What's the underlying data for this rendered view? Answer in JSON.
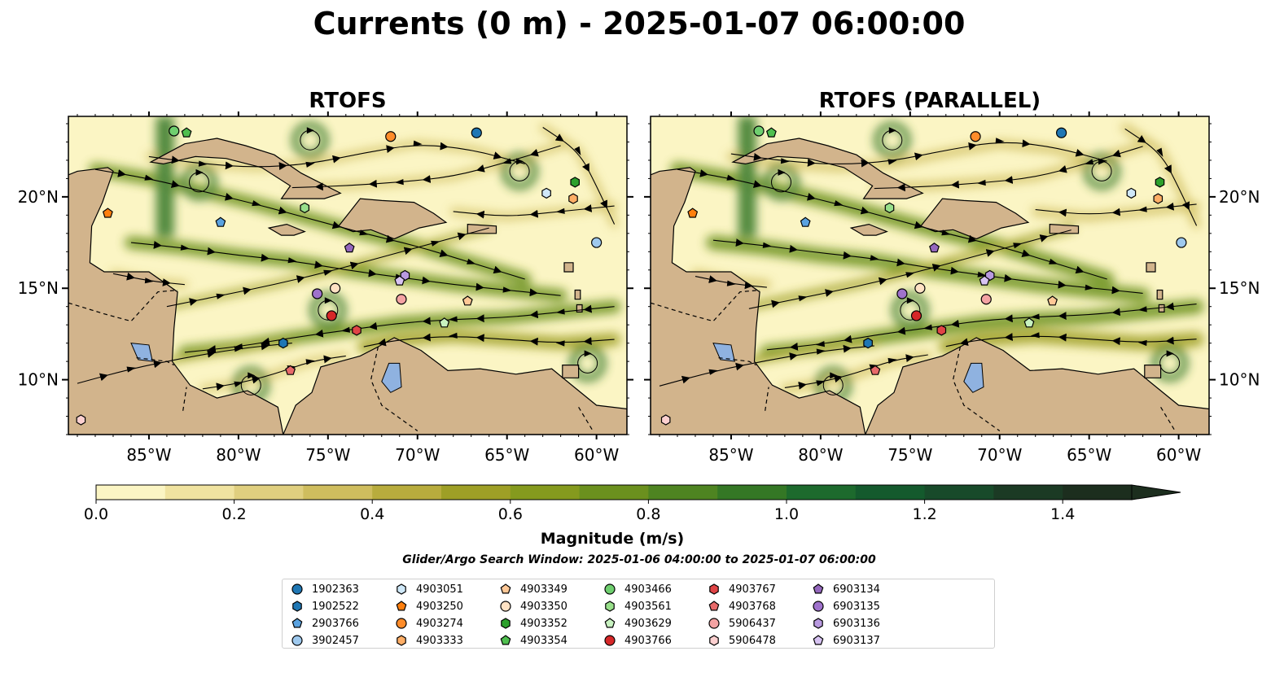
{
  "figure": {
    "title": "Currents (0 m) - 2025-01-07 06:00:00",
    "search_window": "Glider/Argo Search Window: 2025-01-06 04:00:00 to 2025-01-07 06:00:00"
  },
  "panels": [
    {
      "title": "RTOFS"
    },
    {
      "title": "RTOFS (PARALLEL)"
    }
  ],
  "map_extent": {
    "lon": [
      -89.5,
      -58.3
    ],
    "lat": [
      7.0,
      24.4
    ]
  },
  "axes": {
    "lon_ticks": [
      {
        "value": -85,
        "label": "85°W"
      },
      {
        "value": -80,
        "label": "80°W"
      },
      {
        "value": -75,
        "label": "75°W"
      },
      {
        "value": -70,
        "label": "70°W"
      },
      {
        "value": -65,
        "label": "65°W"
      },
      {
        "value": -60,
        "label": "60°W"
      }
    ],
    "lat_ticks": [
      {
        "value": 20,
        "label": "20°N"
      },
      {
        "value": 15,
        "label": "15°N"
      },
      {
        "value": 10,
        "label": "10°N"
      }
    ]
  },
  "colorbar": {
    "label": "Magnitude (m/s)",
    "min": 0.0,
    "max": 1.5,
    "extend": "max",
    "ticks": [
      "0.0",
      "0.2",
      "0.4",
      "0.6",
      "0.8",
      "1.0",
      "1.2",
      "1.4"
    ],
    "colors": [
      "#fbf5c4",
      "#f0e3a0",
      "#e0cf7f",
      "#cfbd5e",
      "#b8ac3d",
      "#9e9f26",
      "#859a1e",
      "#6b901e",
      "#4e8421",
      "#347725",
      "#1d6a2d",
      "#145a2d",
      "#184a2a",
      "#1b3a24",
      "#1c2e1e"
    ]
  },
  "colors": {
    "land": "#d2b48c",
    "lakes": "#8fb2e0",
    "water_low": "#fbf5c4",
    "water_high": "#2e6e25"
  },
  "platforms": [
    {
      "id": "1902363",
      "color": "#1f77b4",
      "marker": "circle"
    },
    {
      "id": "1902522",
      "color": "#1f77b4",
      "marker": "hexagon"
    },
    {
      "id": "2903766",
      "color": "#5aa2e0",
      "marker": "pentagon"
    },
    {
      "id": "3902457",
      "color": "#9ec9ee",
      "marker": "circle"
    },
    {
      "id": "4903051",
      "color": "#cfe8f8",
      "marker": "hexagon"
    },
    {
      "id": "4903250",
      "color": "#ff7f0e",
      "marker": "pentagon"
    },
    {
      "id": "4903274",
      "color": "#ff8c2a",
      "marker": "circle"
    },
    {
      "id": "4903333",
      "color": "#ffae66",
      "marker": "hexagon"
    },
    {
      "id": "4903349",
      "color": "#ffc896",
      "marker": "pentagon"
    },
    {
      "id": "4903350",
      "color": "#ffe2c4",
      "marker": "circle"
    },
    {
      "id": "4903352",
      "color": "#2ca02c",
      "marker": "hexagon"
    },
    {
      "id": "4903354",
      "color": "#4fbf4f",
      "marker": "pentagon"
    },
    {
      "id": "4903466",
      "color": "#6fcf6f",
      "marker": "circle"
    },
    {
      "id": "4903561",
      "color": "#98df8a",
      "marker": "hexagon"
    },
    {
      "id": "4903629",
      "color": "#c8f2c0",
      "marker": "pentagon"
    },
    {
      "id": "4903766",
      "color": "#d62728",
      "marker": "circle"
    },
    {
      "id": "4903767",
      "color": "#e04446",
      "marker": "hexagon"
    },
    {
      "id": "4903768",
      "color": "#e86a6a",
      "marker": "pentagon"
    },
    {
      "id": "5906437",
      "color": "#f4a3a3",
      "marker": "circle"
    },
    {
      "id": "5906478",
      "color": "#fcd0d0",
      "marker": "hexagon"
    },
    {
      "id": "6903134",
      "color": "#9467bd",
      "marker": "pentagon"
    },
    {
      "id": "6903135",
      "color": "#9f72cc",
      "marker": "circle"
    },
    {
      "id": "6903136",
      "color": "#b99ae0",
      "marker": "hexagon"
    },
    {
      "id": "6903137",
      "color": "#d7c3f2",
      "marker": "pentagon"
    }
  ],
  "positions": [
    {
      "id": "1902363",
      "lon": -66.7,
      "lat": 23.5
    },
    {
      "id": "1902522",
      "lon": -77.5,
      "lat": 12.0
    },
    {
      "id": "2903766",
      "lon": -81.0,
      "lat": 18.6
    },
    {
      "id": "3902457",
      "lon": -60.0,
      "lat": 17.5
    },
    {
      "id": "4903051",
      "lon": -62.8,
      "lat": 20.2
    },
    {
      "id": "4903250",
      "lon": -87.3,
      "lat": 19.1
    },
    {
      "id": "4903274",
      "lon": -71.5,
      "lat": 23.3
    },
    {
      "id": "4903333",
      "lon": -61.3,
      "lat": 19.9
    },
    {
      "id": "4903349",
      "lon": -67.2,
      "lat": 14.3
    },
    {
      "id": "4903350",
      "lon": -74.6,
      "lat": 15.0
    },
    {
      "id": "4903352",
      "lon": -61.2,
      "lat": 20.8
    },
    {
      "id": "4903354",
      "lon": -82.9,
      "lat": 23.5
    },
    {
      "id": "4903466",
      "lon": -83.6,
      "lat": 23.6
    },
    {
      "id": "4903561",
      "lon": -76.3,
      "lat": 19.4
    },
    {
      "id": "4903629",
      "lon": -68.5,
      "lat": 13.1
    },
    {
      "id": "4903766",
      "lon": -74.8,
      "lat": 13.5
    },
    {
      "id": "4903767",
      "lon": -73.4,
      "lat": 12.7
    },
    {
      "id": "4903768",
      "lon": -77.1,
      "lat": 10.5
    },
    {
      "id": "5906437",
      "lon": -70.9,
      "lat": 14.4
    },
    {
      "id": "5906478",
      "lon": -88.8,
      "lat": 7.8
    },
    {
      "id": "6903134",
      "lon": -73.8,
      "lat": 17.2
    },
    {
      "id": "6903135",
      "lon": -75.6,
      "lat": 14.7
    },
    {
      "id": "6903136",
      "lon": -70.7,
      "lat": 15.7
    },
    {
      "id": "6903137",
      "lon": -71.0,
      "lat": 15.4
    }
  ],
  "streamlines": [
    [
      [
        -88,
        21.5
      ],
      [
        -85,
        21
      ],
      [
        -82,
        20.3
      ],
      [
        -79,
        19.6
      ],
      [
        -76,
        18.8
      ],
      [
        -73,
        18
      ],
      [
        -70,
        17.3
      ],
      [
        -67,
        16.4
      ],
      [
        -64,
        15.5
      ]
    ],
    [
      [
        -86,
        17.5
      ],
      [
        -83,
        17.2
      ],
      [
        -80,
        16.8
      ],
      [
        -77,
        16.5
      ],
      [
        -74,
        16
      ],
      [
        -71,
        15.6
      ],
      [
        -68,
        15.2
      ],
      [
        -65,
        14.9
      ],
      [
        -62,
        14.6
      ]
    ],
    [
      [
        -59,
        14
      ],
      [
        -62,
        13.7
      ],
      [
        -65,
        13.4
      ],
      [
        -68,
        13.3
      ],
      [
        -71,
        13.1
      ],
      [
        -74,
        12.7
      ],
      [
        -77,
        12.3
      ],
      [
        -80,
        11.8
      ],
      [
        -83,
        11.5
      ]
    ],
    [
      [
        -59,
        12.2
      ],
      [
        -62,
        12.0
      ],
      [
        -65,
        12.2
      ],
      [
        -68,
        12.4
      ],
      [
        -71,
        12.2
      ],
      [
        -73,
        11.8
      ]
    ],
    [
      [
        -84,
        14
      ],
      [
        -81,
        14.6
      ],
      [
        -78,
        15.2
      ],
      [
        -75,
        15.9
      ],
      [
        -72,
        16.7
      ],
      [
        -69,
        17.5
      ],
      [
        -66,
        18.3
      ]
    ],
    [
      [
        -89,
        9.8
      ],
      [
        -86,
        10.6
      ],
      [
        -83,
        11.2
      ],
      [
        -80,
        11.7
      ],
      [
        -77,
        12.0
      ]
    ],
    [
      [
        -62,
        22.8
      ],
      [
        -65,
        21.9
      ],
      [
        -68,
        21.1
      ],
      [
        -71,
        20.8
      ],
      [
        -74,
        20.6
      ],
      [
        -77,
        20.5
      ]
    ],
    [
      [
        -59,
        19.5
      ],
      [
        -62,
        19.2
      ],
      [
        -65,
        18.9
      ],
      [
        -68,
        19.2
      ]
    ],
    [
      [
        -85,
        22.2
      ],
      [
        -82,
        21.8
      ],
      [
        -79,
        21.6
      ],
      [
        -76,
        21.8
      ],
      [
        -73,
        22.4
      ],
      [
        -70,
        22.9
      ],
      [
        -67,
        22.6
      ],
      [
        -64,
        21.8
      ]
    ],
    [
      [
        -82,
        9.5
      ],
      [
        -80,
        9.8
      ],
      [
        -78,
        10.3
      ],
      [
        -76,
        11.0
      ],
      [
        -74,
        11.3
      ]
    ],
    [
      [
        -63,
        23.8
      ],
      [
        -61,
        22.5
      ],
      [
        -60,
        20.6
      ],
      [
        -59,
        18.5
      ]
    ],
    [
      [
        -87,
        15.8
      ],
      [
        -85,
        15.4
      ],
      [
        -83,
        15.2
      ]
    ]
  ],
  "eddies": [
    {
      "lon": -79.3,
      "lat": 9.7
    },
    {
      "lon": -75.0,
      "lat": 13.8
    },
    {
      "lon": -60.5,
      "lat": 10.9
    },
    {
      "lon": -82.2,
      "lat": 20.8
    },
    {
      "lon": -64.3,
      "lat": 21.4
    },
    {
      "lon": -76.0,
      "lat": 23.1
    }
  ]
}
